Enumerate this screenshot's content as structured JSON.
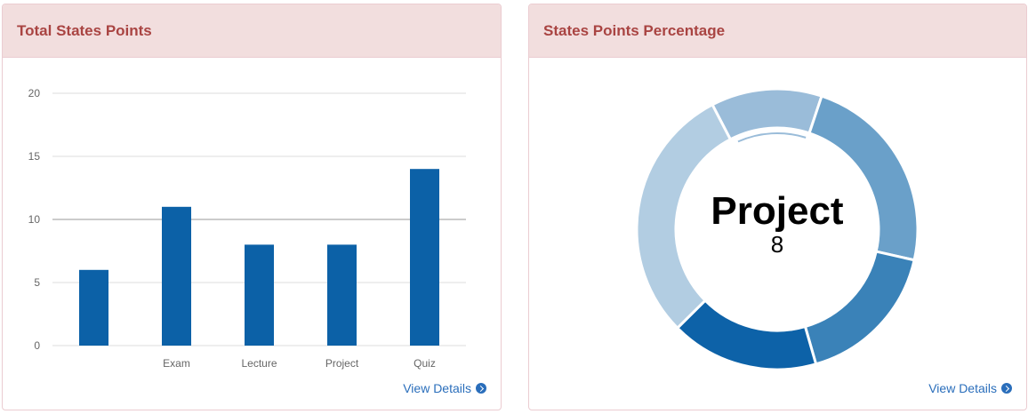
{
  "panels": {
    "left": {
      "title": "Total States Points",
      "link": "View Details"
    },
    "right": {
      "title": "States Points Percentage",
      "link": "View Details"
    }
  },
  "chart_data": [
    {
      "type": "bar",
      "categories": [
        "",
        "Exam",
        "Lecture",
        "Project",
        "Quiz"
      ],
      "values": [
        6,
        11,
        8,
        8,
        14
      ],
      "ylim": [
        0,
        20
      ],
      "yticks": [
        "0",
        "5",
        "10",
        "15",
        "20"
      ],
      "grid": true,
      "color": "#0c61a7"
    },
    {
      "type": "pie",
      "categories": [
        "",
        "Exam",
        "Lecture",
        "Project",
        "Quiz"
      ],
      "values": [
        6,
        11,
        8,
        8,
        14
      ],
      "center_label": "Project",
      "center_value": "8",
      "highlighted": "Project",
      "colors": [
        "#9abcd9",
        "#6aa0c9",
        "#3a82b8",
        "#0d62a8",
        "#b2cde2"
      ]
    }
  ]
}
